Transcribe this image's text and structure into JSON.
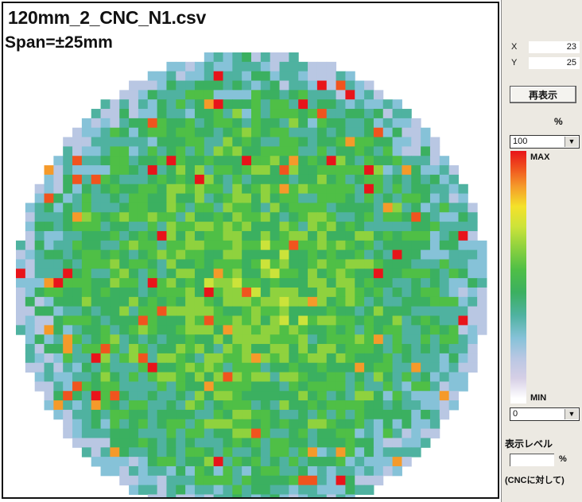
{
  "map": {
    "file_title": "120mm_2_CNC_N1.csv",
    "span_label": "Span=±25mm",
    "heat_palette": [
      "#b9c7e3",
      "#86c2d8",
      "#4fb2a0",
      "#3bb060",
      "#4fbf46",
      "#8fd23e",
      "#cce33a",
      "#f4e22a",
      "#f59a2a",
      "#f0541e",
      "#e8141a"
    ],
    "grid_cells": 50
  },
  "sidebar": {
    "x_label": "X",
    "x_value": "23",
    "y_label": "Y",
    "y_value": "25",
    "redisplay_button": "再表示",
    "percent_header": "%",
    "max_select_value": "100",
    "max_label": "MAX",
    "min_label": "MIN",
    "min_select_value": "0",
    "display_level_label": "表示レベル",
    "level_input_value": "",
    "level_unit": "%",
    "cnc_note": "(CNCに対して)",
    "dropdown_icon": "chevron-down-icon"
  }
}
